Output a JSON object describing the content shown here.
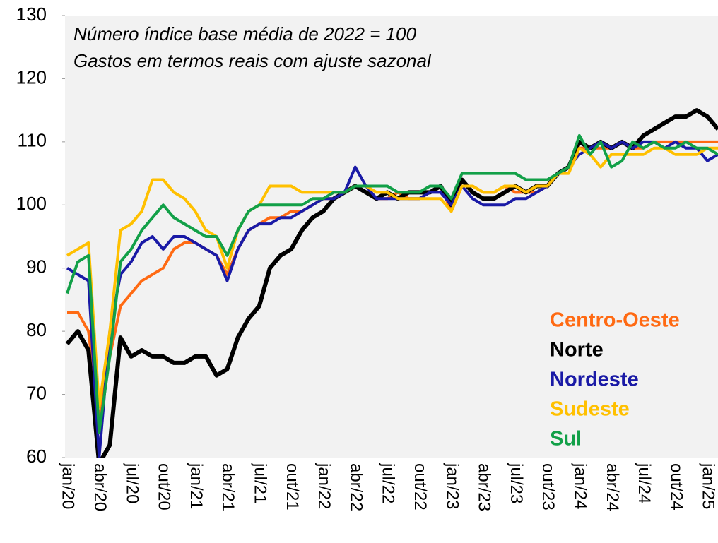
{
  "chart_data": {
    "type": "line",
    "annotations": [
      "Número índice base média de 2022 = 100",
      "Gastos em termos reais com ajuste sazonal"
    ],
    "categories": [
      "jan/20",
      null,
      null,
      "abr/20",
      null,
      null,
      "jul/20",
      null,
      null,
      "out/20",
      null,
      null,
      "jan/21",
      null,
      null,
      "abr/21",
      null,
      null,
      "jul/21",
      null,
      null,
      "out/21",
      null,
      null,
      "jan/22",
      null,
      null,
      "abr/22",
      null,
      null,
      "jul/22",
      null,
      null,
      "out/22",
      null,
      null,
      "jan/23",
      null,
      null,
      "abr/23",
      null,
      null,
      "jul/23",
      null,
      null,
      "out/23",
      null,
      null,
      "jan/24",
      null,
      null,
      "abr/24",
      null,
      null,
      "jul/24",
      null,
      null,
      "out/24",
      null,
      null,
      "jan/25",
      null
    ],
    "series": [
      {
        "name": "Centro-Oeste",
        "color": "#ff6a13",
        "values": [
          83,
          83,
          80,
          66,
          76,
          84,
          86,
          88,
          89,
          90,
          93,
          94,
          94,
          93,
          92,
          89,
          93,
          96,
          97,
          98,
          98,
          99,
          99,
          100,
          101,
          101,
          102,
          103,
          102,
          101,
          101,
          102,
          101,
          101,
          102,
          103,
          99,
          103,
          103,
          102,
          102,
          103,
          102,
          102,
          102,
          103,
          105,
          106,
          109,
          109,
          109,
          109,
          110,
          109,
          109,
          110,
          110,
          110,
          110,
          110,
          110,
          110
        ]
      },
      {
        "name": "Norte",
        "color": "#000000",
        "values": [
          78,
          80,
          77,
          59,
          62,
          79,
          76,
          77,
          76,
          76,
          75,
          75,
          76,
          76,
          73,
          74,
          79,
          82,
          84,
          90,
          92,
          93,
          96,
          98,
          99,
          101,
          102,
          103,
          102,
          101,
          102,
          101,
          102,
          102,
          102,
          103,
          100,
          104,
          102,
          101,
          101,
          102,
          103,
          102,
          103,
          103,
          105,
          106,
          110,
          109,
          110,
          109,
          110,
          109,
          111,
          112,
          113,
          114,
          114,
          115,
          114,
          112
        ]
      },
      {
        "name": "Nordeste",
        "color": "#1a1aa6",
        "values": [
          90,
          89,
          88,
          60,
          80,
          89,
          91,
          94,
          95,
          93,
          95,
          95,
          94,
          93,
          92,
          88,
          93,
          96,
          97,
          97,
          98,
          98,
          99,
          100,
          101,
          101,
          102,
          106,
          103,
          101,
          101,
          101,
          101,
          101,
          102,
          102,
          100,
          103,
          101,
          100,
          100,
          100,
          101,
          101,
          102,
          103,
          105,
          106,
          108,
          109,
          110,
          109,
          110,
          109,
          110,
          110,
          109,
          110,
          109,
          109,
          107,
          108
        ]
      },
      {
        "name": "Sudeste",
        "color": "#ffc000",
        "values": [
          92,
          93,
          94,
          68,
          80,
          96,
          97,
          99,
          104,
          104,
          102,
          101,
          99,
          96,
          95,
          90,
          96,
          99,
          100,
          103,
          103,
          103,
          102,
          102,
          102,
          102,
          102,
          103,
          103,
          102,
          102,
          101,
          101,
          101,
          101,
          101,
          99,
          103,
          103,
          102,
          102,
          103,
          103,
          102,
          103,
          103,
          105,
          105,
          109,
          108,
          106,
          108,
          108,
          108,
          108,
          109,
          109,
          108,
          108,
          108,
          109,
          109
        ]
      },
      {
        "name": "Sul",
        "color": "#12a048",
        "values": [
          86,
          91,
          92,
          64,
          76,
          91,
          93,
          96,
          98,
          100,
          98,
          97,
          96,
          95,
          95,
          92,
          96,
          99,
          100,
          100,
          100,
          100,
          100,
          101,
          101,
          102,
          102,
          103,
          103,
          103,
          103,
          102,
          102,
          102,
          103,
          103,
          101,
          105,
          105,
          105,
          105,
          105,
          105,
          104,
          104,
          104,
          105,
          106,
          111,
          108,
          110,
          106,
          107,
          110,
          109,
          110,
          109,
          109,
          110,
          109,
          109,
          108
        ]
      }
    ],
    "ylim": [
      60,
      130
    ],
    "yticks": [
      60,
      70,
      80,
      90,
      100,
      110,
      120,
      130
    ],
    "grid": false,
    "legend": "lower right"
  }
}
